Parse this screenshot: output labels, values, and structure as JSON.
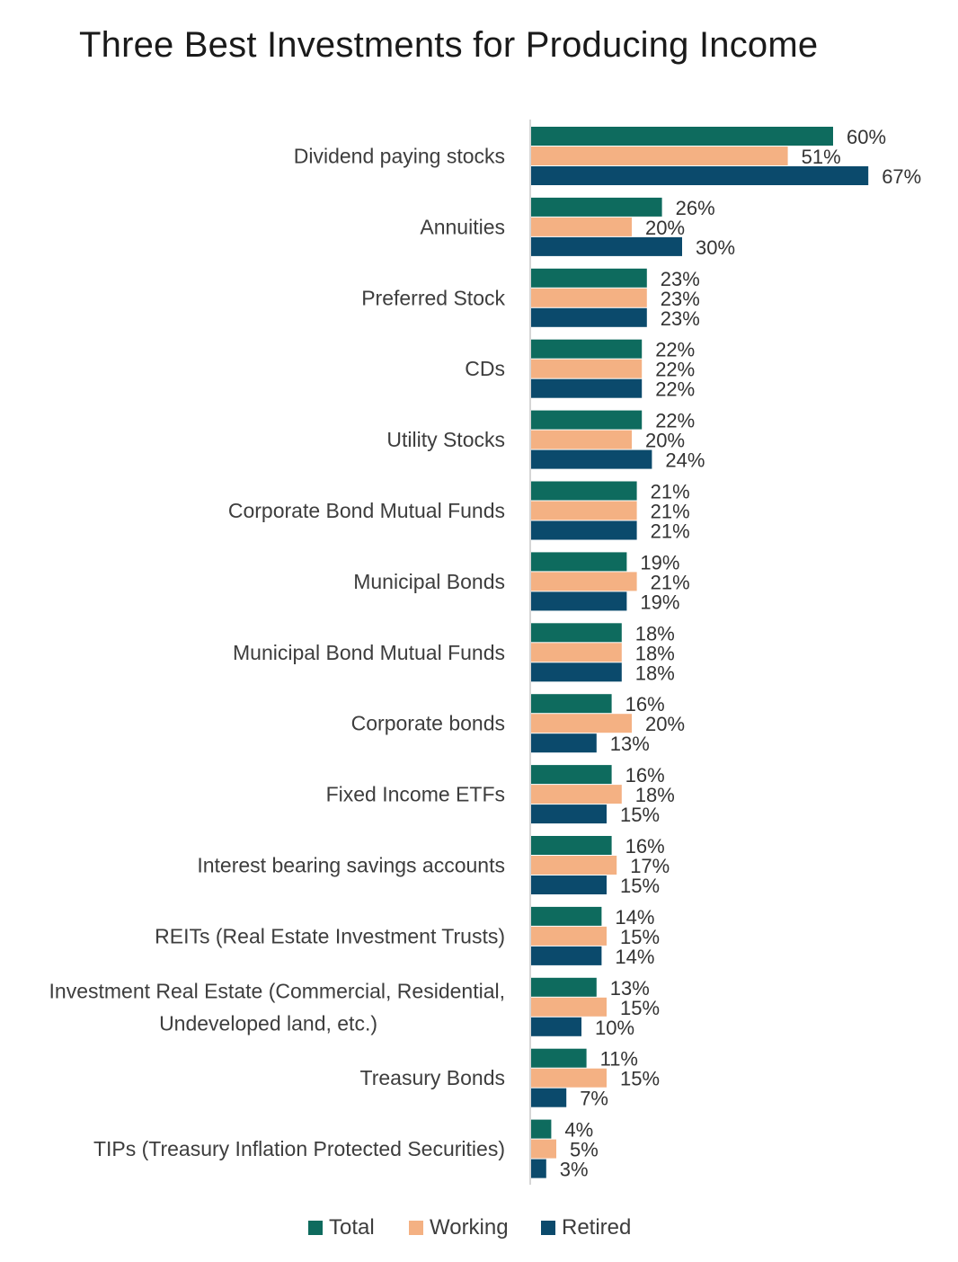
{
  "title": "Three Best Investments for Producing Income",
  "colors": {
    "total": "#0e6b5e",
    "working": "#f4b183",
    "retired": "#0b4a6c",
    "axis": "#c9c9c9"
  },
  "legend": [
    {
      "key": "total",
      "label": "Total",
      "color": "#0e6b5e"
    },
    {
      "key": "working",
      "label": "Working",
      "color": "#f4b183"
    },
    {
      "key": "retired",
      "label": "Retired",
      "color": "#0b4a6c"
    }
  ],
  "chart_data": {
    "type": "bar",
    "orientation": "horizontal",
    "title": "Three Best Investments for Producing Income",
    "xlabel": "",
    "ylabel": "",
    "xlim": [
      0,
      70
    ],
    "grid": false,
    "legend_position": "bottom",
    "value_suffix": "%",
    "categories": [
      [
        "Dividend paying stocks"
      ],
      [
        "Annuities"
      ],
      [
        "Preferred Stock"
      ],
      [
        "CDs"
      ],
      [
        "Utility Stocks"
      ],
      [
        "Corporate Bond Mutual Funds"
      ],
      [
        "Municipal Bonds"
      ],
      [
        "Municipal Bond Mutual Funds"
      ],
      [
        "Corporate bonds"
      ],
      [
        "Fixed Income ETFs"
      ],
      [
        "Interest bearing savings accounts"
      ],
      [
        "REITs (Real Estate Investment Trusts)"
      ],
      [
        "Investment Real Estate (Commercial, Residential,",
        "Undeveloped land, etc.)"
      ],
      [
        "Treasury Bonds"
      ],
      [
        "TIPs (Treasury Inflation Protected Securities)"
      ]
    ],
    "series": [
      {
        "name": "Total",
        "color": "#0e6b5e",
        "values": [
          60,
          26,
          23,
          22,
          22,
          21,
          19,
          18,
          16,
          16,
          16,
          14,
          13,
          11,
          4
        ]
      },
      {
        "name": "Working",
        "color": "#f4b183",
        "values": [
          51,
          20,
          23,
          22,
          20,
          21,
          21,
          18,
          20,
          18,
          17,
          15,
          15,
          15,
          5
        ]
      },
      {
        "name": "Retired",
        "color": "#0b4a6c",
        "values": [
          67,
          30,
          23,
          22,
          24,
          21,
          19,
          18,
          13,
          15,
          15,
          14,
          10,
          7,
          3
        ]
      }
    ]
  }
}
